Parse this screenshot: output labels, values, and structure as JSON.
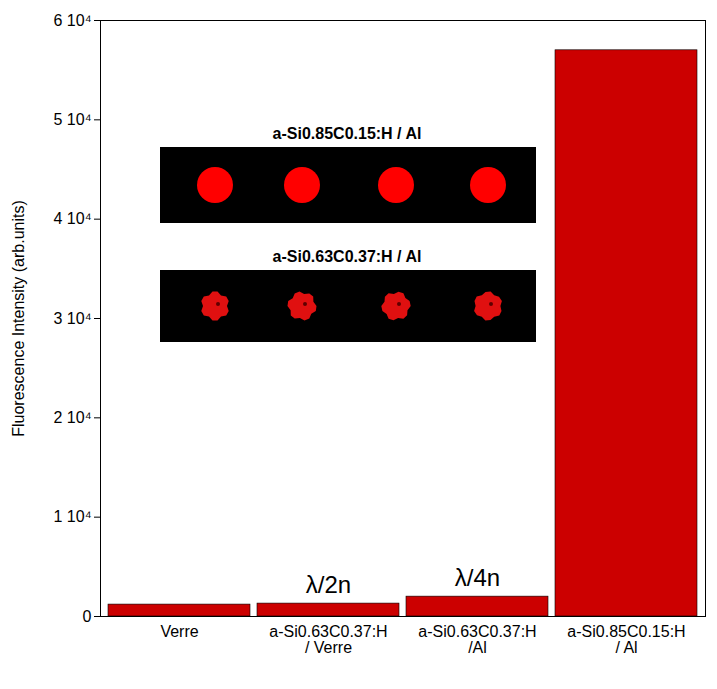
{
  "chart_data": {
    "type": "bar",
    "y_label": "Fluorescence Intensity (arb.units)",
    "categories": [
      "Verre",
      "a-Si0.63C0.37:H / Verre",
      "a-Si0.63C0.37:H /Al",
      "a-Si0.85C0.15:H / Al"
    ],
    "values": [
      1200,
      1300,
      2000,
      57000
    ],
    "color": "#cc0000",
    "ylim": [
      0,
      60000
    ],
    "yticks": [
      0,
      {
        "value": 10000,
        "label": "1 10⁴"
      },
      {
        "value": 20000,
        "label": "2 10⁴"
      },
      {
        "value": 30000,
        "label": "3 10⁴"
      },
      {
        "value": 40000,
        "label": "4 10⁴"
      },
      {
        "value": 50000,
        "label": "5 10⁴"
      },
      {
        "value": 60000,
        "label": "6 10⁴"
      }
    ],
    "grid": false,
    "annotations": [
      {
        "text": "λ/2n",
        "category": "a-Si0.63C0.37:H / Verre"
      },
      {
        "text": "λ/4n",
        "category": "a-Si0.63C0.37:H /Al"
      }
    ],
    "insets": [
      {
        "title": "a-Si0.85C0.15:H / Al"
      },
      {
        "title": "a-Si0.63C0.37:H / Al"
      }
    ]
  }
}
